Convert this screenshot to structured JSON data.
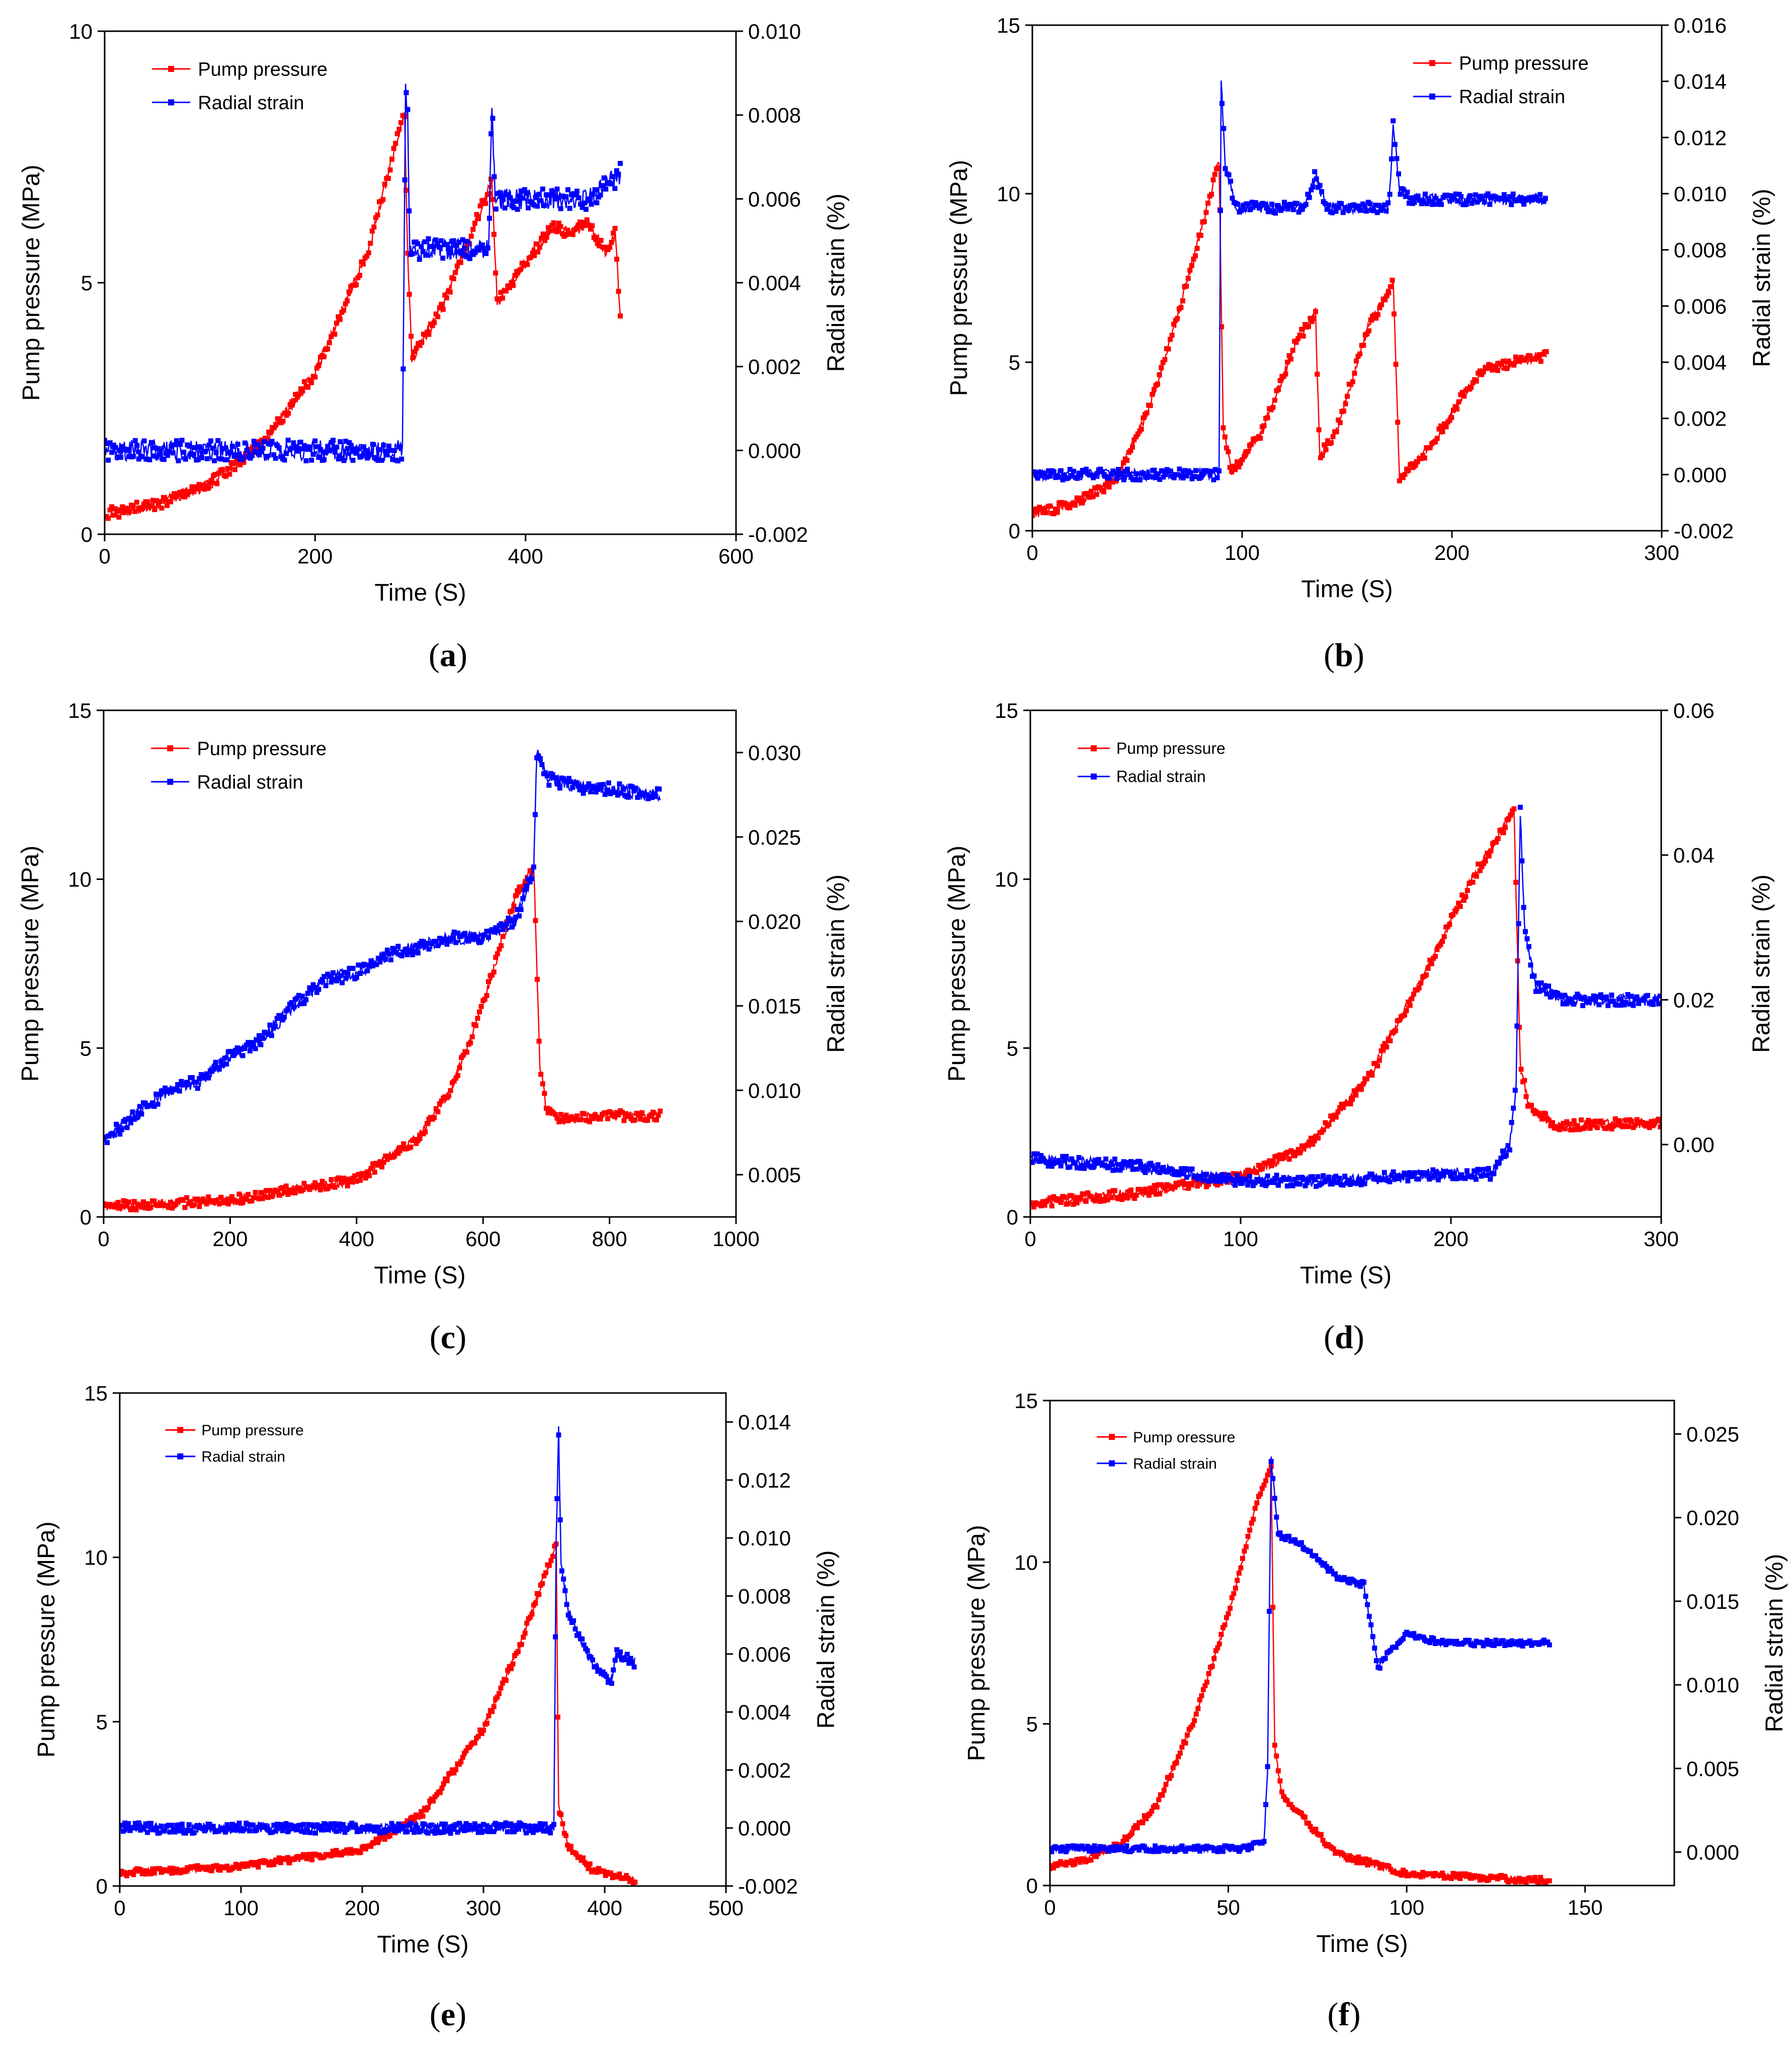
{
  "figure": {
    "x_label": "Time (S)",
    "y_left_label": "Pump pressure (MPa)",
    "y_right_label": "Radial strain (%)",
    "colors": {
      "pressure": "#ff0000",
      "strain": "#0000ff",
      "axis": "#000000"
    }
  },
  "chart_data": [
    {
      "id": "a",
      "type": "line",
      "caption_letter": "a",
      "legend_font": 38,
      "legend": [
        "Pump pressure",
        "Radial strain"
      ],
      "xlim": [
        0,
        600
      ],
      "xticks": [
        0,
        200,
        400,
        600
      ],
      "ylim_left": [
        0,
        10
      ],
      "yticks_left": [
        0,
        5,
        10
      ],
      "ylim_right": [
        -0.002,
        0.01
      ],
      "yticks_right": [
        "-0.002",
        "0.000",
        "0.002",
        "0.004",
        "0.006",
        "0.008",
        "0.010"
      ],
      "series": [
        {
          "name": "Pump pressure",
          "axis": "left",
          "band": 0.12,
          "pts": [
            [
              0,
              0.4
            ],
            [
              50,
              0.6
            ],
            [
              100,
              1.0
            ],
            [
              150,
              1.8
            ],
            [
              200,
              3.2
            ],
            [
              250,
              5.6
            ],
            [
              285,
              8.4
            ],
            [
              288,
              5.5
            ],
            [
              292,
              3.5
            ],
            [
              320,
              4.5
            ],
            [
              345,
              5.8
            ],
            [
              368,
              7.0
            ],
            [
              370,
              6.0
            ],
            [
              373,
              4.6
            ],
            [
              400,
              5.4
            ],
            [
              425,
              6.1
            ],
            [
              445,
              6.0
            ],
            [
              460,
              6.2
            ],
            [
              475,
              5.6
            ],
            [
              485,
              6.0
            ],
            [
              490,
              4.4
            ]
          ]
        },
        {
          "name": "Radial strain",
          "axis": "right",
          "band": 0.00025,
          "pts": [
            [
              0,
              0.0
            ],
            [
              100,
              0.0
            ],
            [
              200,
              0.0
            ],
            [
              283,
              0.0
            ],
            [
              286,
              0.0085
            ],
            [
              288,
              0.008
            ],
            [
              290,
              0.0048
            ],
            [
              300,
              0.0048
            ],
            [
              365,
              0.0048
            ],
            [
              368,
              0.0084
            ],
            [
              371,
              0.006
            ],
            [
              400,
              0.006
            ],
            [
              460,
              0.006
            ],
            [
              490,
              0.0066
            ]
          ]
        }
      ]
    },
    {
      "id": "b",
      "type": "line",
      "caption_letter": "b",
      "legend_font": 38,
      "legend": [
        "Pump pressure",
        "Radial strain"
      ],
      "xlim": [
        0,
        300
      ],
      "xticks": [
        0,
        100,
        200,
        300
      ],
      "ylim_left": [
        0,
        15
      ],
      "yticks_left": [
        0,
        5,
        10,
        15
      ],
      "ylim_right": [
        -0.002,
        0.016
      ],
      "yticks_right": [
        "-0.002",
        "0.000",
        "0.002",
        "0.004",
        "0.006",
        "0.008",
        "0.010",
        "0.012",
        "0.014",
        "0.016"
      ],
      "series": [
        {
          "name": "Pump pressure",
          "axis": "left",
          "band": 0.15,
          "pts": [
            [
              0,
              0.5
            ],
            [
              20,
              0.8
            ],
            [
              40,
              1.5
            ],
            [
              55,
              3.5
            ],
            [
              70,
              6.5
            ],
            [
              85,
              10.0
            ],
            [
              89,
              11.0
            ],
            [
              91,
              3.0
            ],
            [
              95,
              1.7
            ],
            [
              110,
              3.0
            ],
            [
              125,
              5.5
            ],
            [
              135,
              6.5
            ],
            [
              137,
              2.2
            ],
            [
              145,
              3.0
            ],
            [
              160,
              6.0
            ],
            [
              172,
              7.4
            ],
            [
              175,
              1.5
            ],
            [
              190,
              2.5
            ],
            [
              205,
              4.0
            ],
            [
              215,
              4.8
            ],
            [
              230,
              5.0
            ],
            [
              245,
              5.2
            ]
          ]
        },
        {
          "name": "Radial strain",
          "axis": "right",
          "band": 0.0002,
          "pts": [
            [
              0,
              0.0
            ],
            [
              50,
              0.0
            ],
            [
              89,
              0.0
            ],
            [
              90,
              0.014
            ],
            [
              92,
              0.011
            ],
            [
              97,
              0.0095
            ],
            [
              130,
              0.0095
            ],
            [
              135,
              0.0107
            ],
            [
              140,
              0.0095
            ],
            [
              170,
              0.0095
            ],
            [
              172,
              0.0125
            ],
            [
              175,
              0.0102
            ],
            [
              180,
              0.0098
            ],
            [
              245,
              0.0098
            ]
          ]
        }
      ]
    },
    {
      "id": "c",
      "type": "line",
      "caption_letter": "c",
      "legend_font": 38,
      "legend": [
        "Pump pressure",
        "Radial strain"
      ],
      "xlim": [
        0,
        1000
      ],
      "xticks": [
        0,
        200,
        400,
        600,
        800,
        1000
      ],
      "ylim_left": [
        0,
        15
      ],
      "yticks_left": [
        0,
        5,
        10,
        15
      ],
      "ylim_right": [
        0.0025,
        0.0325
      ],
      "yticks_right": [
        "0.005",
        "0.010",
        "0.015",
        "0.020",
        "0.025",
        "0.030"
      ],
      "series": [
        {
          "name": "Pump pressure",
          "axis": "left",
          "band": 0.15,
          "pts": [
            [
              0,
              0.3
            ],
            [
              200,
              0.5
            ],
            [
              400,
              1.1
            ],
            [
              500,
              2.4
            ],
            [
              550,
              3.8
            ],
            [
              600,
              6.3
            ],
            [
              650,
              9.4
            ],
            [
              680,
              10.4
            ],
            [
              690,
              4.5
            ],
            [
              700,
              3.2
            ],
            [
              720,
              2.9
            ],
            [
              800,
              3.0
            ],
            [
              880,
              3.0
            ]
          ]
        },
        {
          "name": "Radial strain",
          "axis": "right",
          "band": 0.0004,
          "pts": [
            [
              0,
              0.007
            ],
            [
              50,
              0.0085
            ],
            [
              100,
              0.01
            ],
            [
              150,
              0.0105
            ],
            [
              200,
              0.012
            ],
            [
              250,
              0.013
            ],
            [
              300,
              0.015
            ],
            [
              350,
              0.0165
            ],
            [
              400,
              0.017
            ],
            [
              450,
              0.018
            ],
            [
              500,
              0.0185
            ],
            [
              550,
              0.019
            ],
            [
              600,
              0.019
            ],
            [
              650,
              0.02
            ],
            [
              680,
              0.023
            ],
            [
              685,
              0.03
            ],
            [
              700,
              0.0285
            ],
            [
              750,
              0.028
            ],
            [
              880,
              0.0275
            ]
          ]
        }
      ]
    },
    {
      "id": "d",
      "type": "line",
      "caption_letter": "d",
      "legend_font": 32,
      "legend": [
        "Pump pressure",
        "Radial strain"
      ],
      "xlim": [
        0,
        300
      ],
      "xticks": [
        0,
        100,
        200,
        300
      ],
      "ylim_left": [
        0,
        15
      ],
      "yticks_left": [
        0,
        5,
        10,
        15
      ],
      "ylim_right": [
        -0.01,
        0.06
      ],
      "yticks_right": [
        "0.00",
        "0.02",
        "0.04",
        "0.06"
      ],
      "series": [
        {
          "name": "Pump pressure",
          "axis": "left",
          "band": 0.15,
          "pts": [
            [
              0,
              0.4
            ],
            [
              50,
              0.7
            ],
            [
              100,
              1.2
            ],
            [
              130,
              2.0
            ],
            [
              160,
              4.0
            ],
            [
              190,
              7.5
            ],
            [
              210,
              10.0
            ],
            [
              225,
              11.5
            ],
            [
              230,
              12.0
            ],
            [
              233,
              4.5
            ],
            [
              237,
              3.3
            ],
            [
              250,
              2.7
            ],
            [
              300,
              2.8
            ]
          ]
        },
        {
          "name": "Radial strain",
          "axis": "right",
          "band": 0.0008,
          "pts": [
            [
              0,
              -0.002
            ],
            [
              50,
              -0.003
            ],
            [
              100,
              -0.005
            ],
            [
              150,
              -0.005
            ],
            [
              200,
              -0.004
            ],
            [
              220,
              -0.004
            ],
            [
              228,
              0.0
            ],
            [
              231,
              0.008
            ],
            [
              233,
              0.046
            ],
            [
              235,
              0.03
            ],
            [
              240,
              0.022
            ],
            [
              255,
              0.02
            ],
            [
              300,
              0.02
            ]
          ]
        }
      ]
    },
    {
      "id": "e",
      "type": "line",
      "caption_letter": "e",
      "legend_font": 30,
      "legend": [
        "Pump pressure",
        "Radial strain"
      ],
      "xlim": [
        0,
        500
      ],
      "xticks": [
        0,
        100,
        200,
        300,
        400,
        500
      ],
      "ylim_left": [
        0,
        15
      ],
      "yticks_left": [
        0,
        5,
        10,
        15
      ],
      "ylim_right": [
        -0.002,
        0.015
      ],
      "yticks_right": [
        "-0.002",
        "0.000",
        "0.002",
        "0.004",
        "0.006",
        "0.008",
        "0.010",
        "0.012",
        "0.014"
      ],
      "series": [
        {
          "name": "Pump pressure",
          "axis": "left",
          "band": 0.1,
          "pts": [
            [
              0,
              0.4
            ],
            [
              100,
              0.6
            ],
            [
              200,
              1.1
            ],
            [
              250,
              2.2
            ],
            [
              300,
              4.8
            ],
            [
              330,
              7.3
            ],
            [
              350,
              9.4
            ],
            [
              360,
              10.4
            ],
            [
              362,
              2.4
            ],
            [
              370,
              1.2
            ],
            [
              390,
              0.5
            ],
            [
              425,
              0.15
            ]
          ]
        },
        {
          "name": "Radial strain",
          "axis": "right",
          "band": 0.00018,
          "pts": [
            [
              0,
              0.0
            ],
            [
              100,
              0.0
            ],
            [
              200,
              0.0
            ],
            [
              300,
              0.0
            ],
            [
              358,
              0.0
            ],
            [
              360,
              0.01
            ],
            [
              362,
              0.0137
            ],
            [
              364,
              0.009
            ],
            [
              370,
              0.0075
            ],
            [
              385,
              0.006
            ],
            [
              405,
              0.005
            ],
            [
              410,
              0.006
            ],
            [
              425,
              0.0057
            ]
          ]
        }
      ]
    },
    {
      "id": "f",
      "type": "line",
      "caption_letter": "f",
      "legend_font": 30,
      "legend": [
        "Pump oressure",
        "Radial strain"
      ],
      "xlim": [
        0,
        175
      ],
      "xticks": [
        0,
        50,
        100,
        150
      ],
      "ylim_left": [
        0,
        15
      ],
      "yticks_left": [
        0,
        5,
        10,
        15
      ],
      "ylim_right": [
        -0.002,
        0.027
      ],
      "yticks_right": [
        "0.000",
        "0.005",
        "0.010",
        "0.015",
        "0.020",
        "0.025"
      ],
      "series": [
        {
          "name": "Pump oressure",
          "axis": "left",
          "band": 0.1,
          "pts": [
            [
              0,
              0.6
            ],
            [
              10,
              0.8
            ],
            [
              20,
              1.3
            ],
            [
              30,
              2.5
            ],
            [
              40,
              5.0
            ],
            [
              50,
              8.4
            ],
            [
              58,
              11.8
            ],
            [
              62,
              13.0
            ],
            [
              63,
              4.3
            ],
            [
              65,
              2.8
            ],
            [
              70,
              2.2
            ],
            [
              80,
              1.0
            ],
            [
              100,
              0.35
            ],
            [
              140,
              0.15
            ]
          ]
        },
        {
          "name": "Radial strain",
          "axis": "right",
          "band": 0.00018,
          "pts": [
            [
              0,
              0.0002
            ],
            [
              30,
              0.0002
            ],
            [
              55,
              0.0002
            ],
            [
              60,
              0.0006
            ],
            [
              61,
              0.005
            ],
            [
              62,
              0.0235
            ],
            [
              64,
              0.019
            ],
            [
              70,
              0.0185
            ],
            [
              80,
              0.0165
            ],
            [
              88,
              0.016
            ],
            [
              90,
              0.0135
            ],
            [
              92,
              0.011
            ],
            [
              95,
              0.012
            ],
            [
              100,
              0.013
            ],
            [
              110,
              0.0125
            ],
            [
              140,
              0.0125
            ]
          ]
        }
      ]
    }
  ]
}
